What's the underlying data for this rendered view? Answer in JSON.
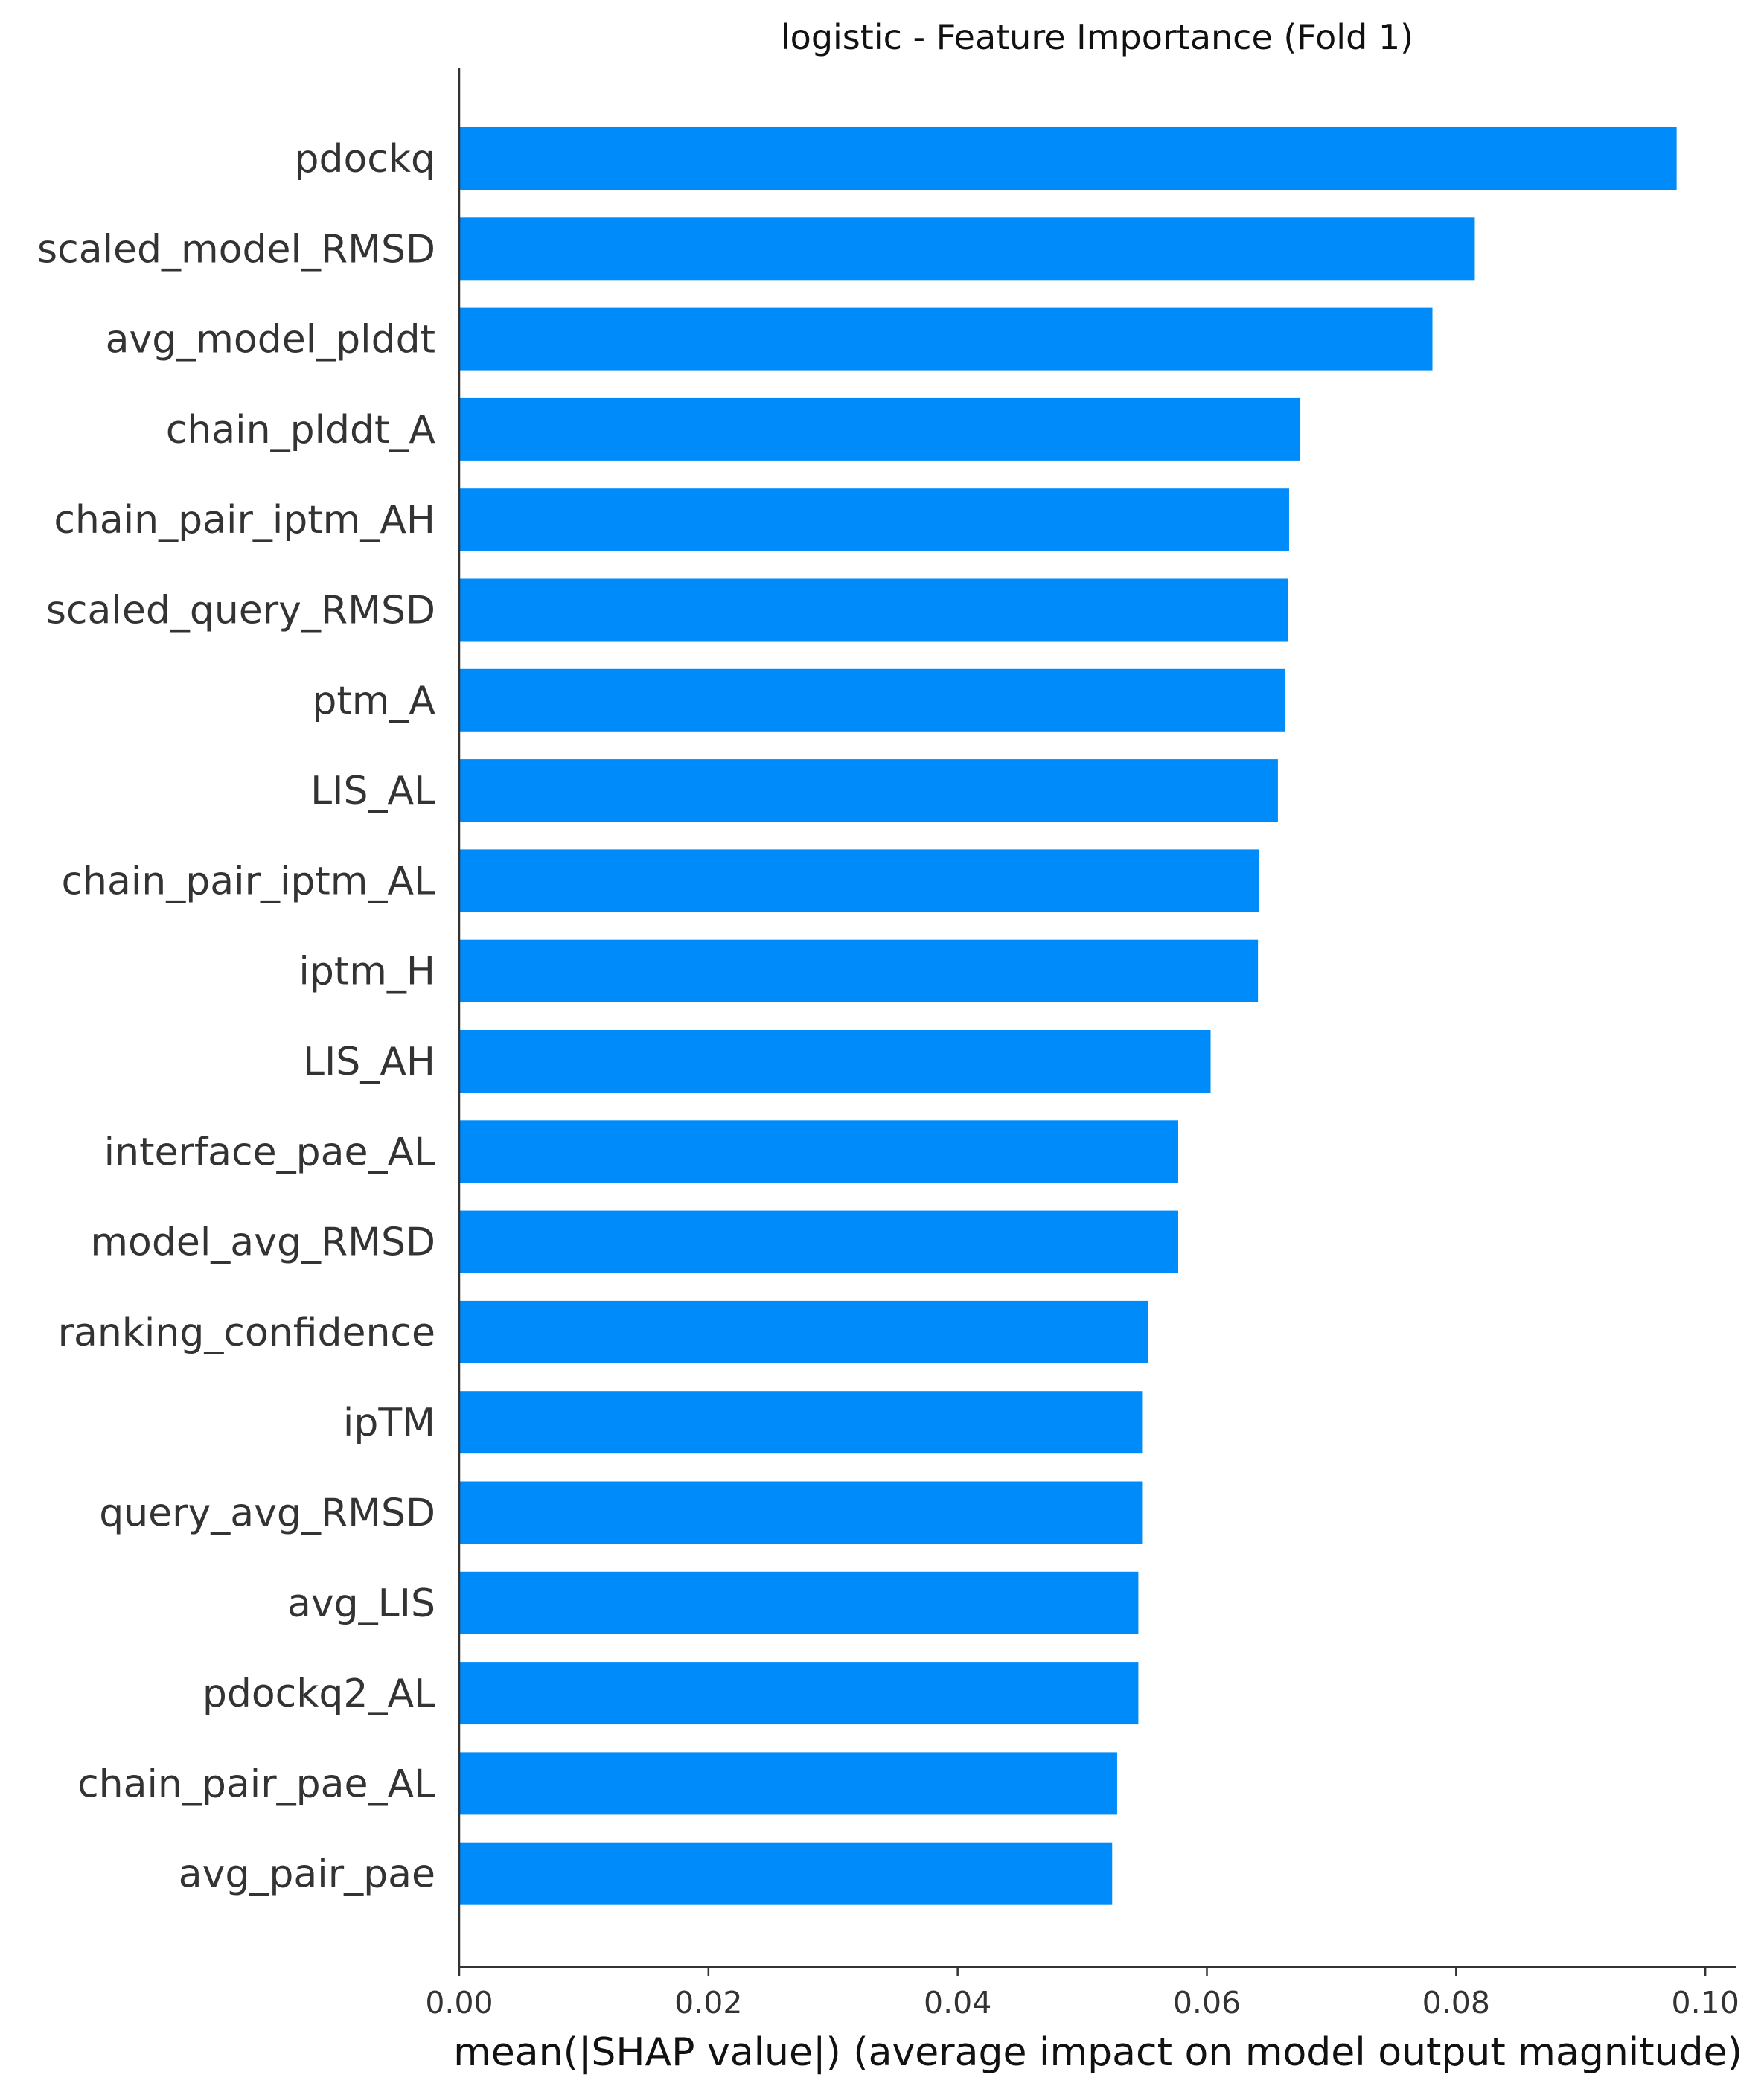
{
  "chart_data": {
    "type": "bar",
    "orientation": "horizontal",
    "title": "logistic - Feature Importance (Fold 1)",
    "xlabel": "mean(|SHAP value|) (average impact on model output magnitude)",
    "ylabel": "",
    "xlim": [
      0,
      0.1025
    ],
    "xticks": [
      0.0,
      0.02,
      0.04,
      0.06,
      0.08,
      0.1
    ],
    "xtick_labels": [
      "0.00",
      "0.02",
      "0.04",
      "0.06",
      "0.08",
      "0.10"
    ],
    "bar_color": "#008bfb",
    "grid": false,
    "categories": [
      "pdockq",
      "scaled_model_RMSD",
      "avg_model_plddt",
      "chain_plddt_A",
      "chain_pair_iptm_AH",
      "scaled_query_RMSD",
      "ptm_A",
      "LIS_AL",
      "chain_pair_iptm_AL",
      "iptm_H",
      "LIS_AH",
      "interface_pae_AL",
      "model_avg_RMSD",
      "ranking_confidence",
      "ipTM",
      "query_avg_RMSD",
      "avg_LIS",
      "pdockq2_AL",
      "chain_pair_pae_AL",
      "avg_pair_pae"
    ],
    "values": [
      0.0977,
      0.0815,
      0.0781,
      0.0675,
      0.0666,
      0.0665,
      0.0663,
      0.0657,
      0.0642,
      0.0641,
      0.0603,
      0.0577,
      0.0577,
      0.0553,
      0.0548,
      0.0548,
      0.0545,
      0.0545,
      0.0528,
      0.0524
    ]
  }
}
